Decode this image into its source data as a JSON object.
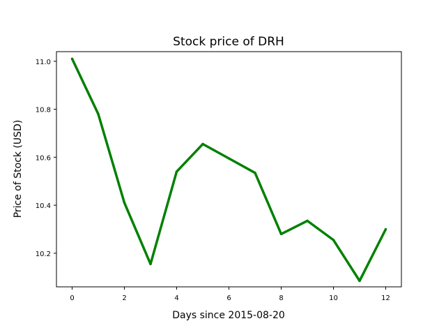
{
  "chart_data": {
    "type": "line",
    "title": "Stock price of DRH",
    "xlabel": "Days since 2015-08-20",
    "ylabel": "Price of Stock (USD)",
    "x": [
      0,
      1,
      2,
      3,
      4,
      5,
      6,
      7,
      8,
      9,
      10,
      11,
      12
    ],
    "series": [
      {
        "values": [
          11.01,
          10.78,
          10.41,
          10.155,
          10.54,
          10.655,
          10.595,
          10.535,
          10.28,
          10.335,
          10.255,
          10.085,
          10.3
        ],
        "color": "#008000"
      }
    ],
    "xlim": [
      -0.6,
      12.6
    ],
    "ylim": [
      10.06,
      11.04
    ],
    "xticks": [
      0,
      2,
      4,
      6,
      8,
      10,
      12
    ],
    "yticks": [
      10.2,
      10.4,
      10.6,
      10.8,
      11.0
    ],
    "ytick_labels": [
      "10.2",
      "10.4",
      "10.6",
      "10.8",
      "11.0"
    ],
    "grid": false,
    "legend": false
  }
}
